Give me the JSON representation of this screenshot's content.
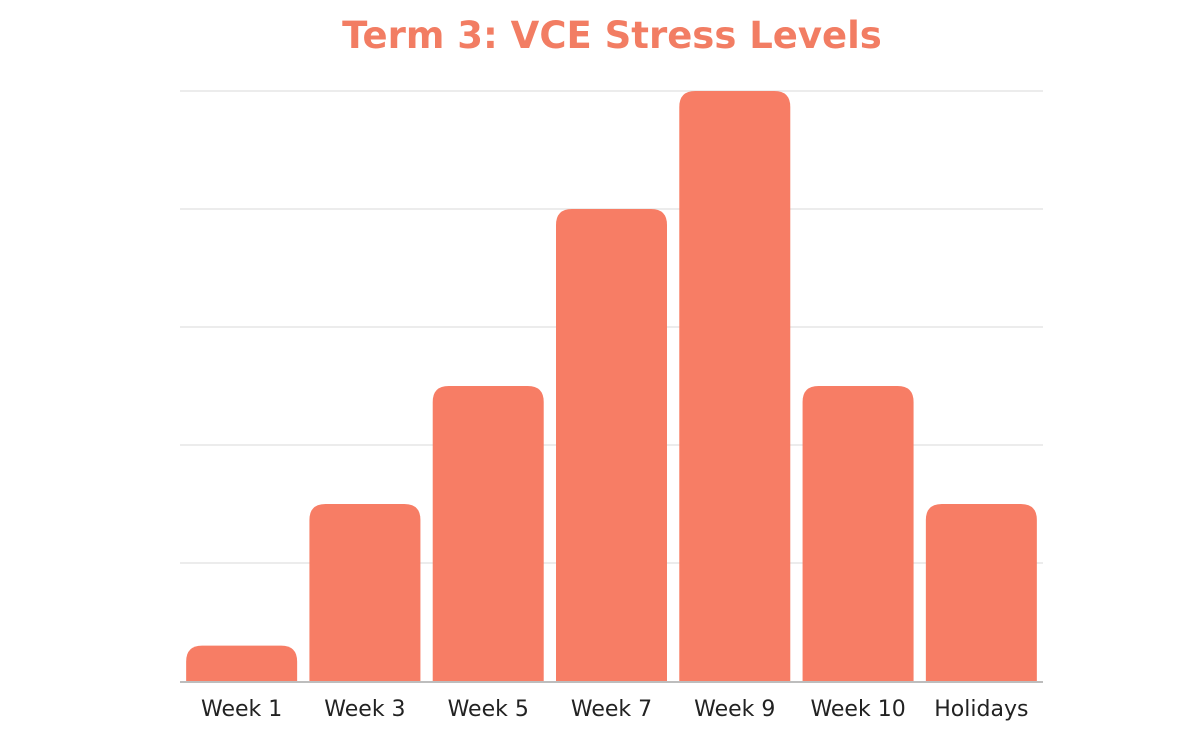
{
  "chart_data": {
    "type": "bar",
    "title": "Term 3: VCE Stress Levels",
    "xlabel": "",
    "ylabel": "",
    "categories": [
      "Week 1",
      "Week 3",
      "Week 5",
      "Week 7",
      "Week 9",
      "Week 10",
      "Holidays"
    ],
    "values": [
      0.3,
      1.5,
      2.5,
      4,
      5,
      2.5,
      1.5
    ],
    "ylim": [
      0,
      5
    ],
    "grid": true,
    "legend": "none",
    "colors": {
      "bar": "#f77d65",
      "grid": "#e6e6e6",
      "axis": "#bdbdbd",
      "title": "#f27d63"
    }
  }
}
